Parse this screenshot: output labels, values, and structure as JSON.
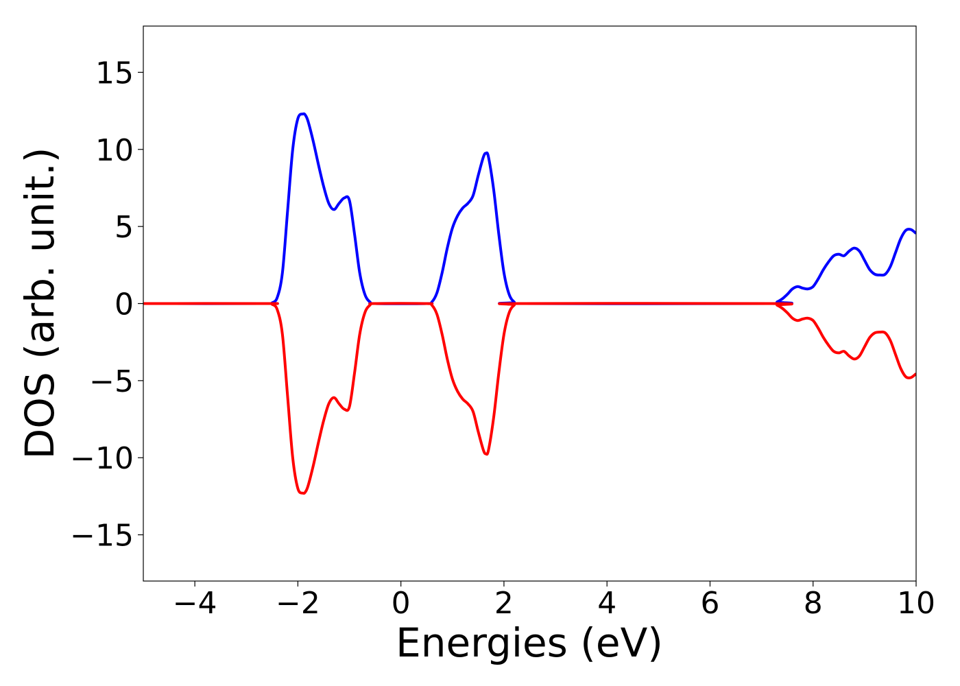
{
  "chart_data": {
    "type": "line",
    "title": "",
    "xlabel": "Energies (eV)",
    "ylabel": "DOS (arb. unit.)",
    "xlim": [
      -5,
      10
    ],
    "ylim": [
      -18,
      18
    ],
    "xticks": [
      -4,
      -2,
      0,
      2,
      4,
      6,
      8,
      10
    ],
    "xtick_labels": [
      "−4",
      "−2",
      "0",
      "2",
      "4",
      "6",
      "8",
      "10"
    ],
    "yticks": [
      15,
      10,
      5,
      0,
      -5,
      -10,
      -15
    ],
    "ytick_labels": [
      "15",
      "10",
      "5",
      "0",
      "−5",
      "−10",
      "−15"
    ],
    "grid": false,
    "legend": "none",
    "series": [
      {
        "color": "#0000ff",
        "x": [
          -5,
          -2.6,
          -2.5,
          -2.4,
          -2.3,
          -2.2,
          -2.1,
          -2.0,
          -1.9,
          -1.85,
          -1.8,
          -1.7,
          -1.6,
          -1.5,
          -1.4,
          -1.3,
          -1.2,
          -1.1,
          -1.0,
          -0.9,
          -0.8,
          -0.7,
          -0.6,
          -0.5,
          0.5,
          0.6,
          0.7,
          0.8,
          0.9,
          1.0,
          1.1,
          1.2,
          1.3,
          1.4,
          1.5,
          1.6,
          1.65,
          1.7,
          1.8,
          1.9,
          2.0,
          2.1,
          2.2,
          2.3,
          7.2,
          7.3,
          7.4,
          7.5,
          7.6,
          7.7,
          7.8,
          7.9,
          8.0,
          8.1,
          8.2,
          8.3,
          8.4,
          8.5,
          8.6,
          8.7,
          8.8,
          8.9,
          9.0,
          9.1,
          9.2,
          9.3,
          9.4,
          9.5,
          9.6,
          9.7,
          9.8,
          9.9,
          10.0
        ],
        "values": [
          0,
          0,
          0.05,
          0.4,
          2.0,
          6.0,
          10.0,
          12.0,
          12.3,
          12.2,
          11.8,
          10.5,
          9.0,
          7.6,
          6.5,
          6.1,
          6.5,
          6.85,
          6.7,
          4.5,
          2.0,
          0.6,
          0.1,
          0,
          0,
          0.1,
          0.7,
          2.0,
          3.6,
          4.9,
          5.7,
          6.2,
          6.5,
          7.0,
          8.3,
          9.5,
          9.75,
          9.5,
          7.4,
          4.5,
          2.0,
          0.6,
          0.1,
          0,
          0,
          0.1,
          0.3,
          0.6,
          0.95,
          1.1,
          1.0,
          0.95,
          1.1,
          1.6,
          2.2,
          2.7,
          3.1,
          3.2,
          3.1,
          3.4,
          3.6,
          3.4,
          2.8,
          2.2,
          1.9,
          1.85,
          1.9,
          2.4,
          3.3,
          4.2,
          4.75,
          4.8,
          4.55
        ]
      },
      {
        "color": "#ff0000",
        "x": [
          -5,
          -2.6,
          -2.5,
          -2.4,
          -2.3,
          -2.2,
          -2.1,
          -2.0,
          -1.9,
          -1.85,
          -1.8,
          -1.7,
          -1.6,
          -1.5,
          -1.4,
          -1.3,
          -1.2,
          -1.1,
          -1.0,
          -0.9,
          -0.8,
          -0.7,
          -0.6,
          -0.5,
          0.5,
          0.6,
          0.7,
          0.8,
          0.9,
          1.0,
          1.1,
          1.2,
          1.3,
          1.4,
          1.5,
          1.6,
          1.65,
          1.7,
          1.8,
          1.9,
          2.0,
          2.1,
          2.2,
          2.3,
          7.2,
          7.3,
          7.4,
          7.5,
          7.6,
          7.7,
          7.8,
          7.9,
          8.0,
          8.1,
          8.2,
          8.3,
          8.4,
          8.5,
          8.6,
          8.7,
          8.8,
          8.9,
          9.0,
          9.1,
          9.2,
          9.3,
          9.4,
          9.5,
          9.6,
          9.7,
          9.8,
          9.9,
          10.0
        ],
        "values": [
          0,
          0,
          -0.05,
          -0.4,
          -2.0,
          -6.0,
          -10.0,
          -12.0,
          -12.3,
          -12.2,
          -11.8,
          -10.5,
          -9.0,
          -7.6,
          -6.5,
          -6.1,
          -6.5,
          -6.85,
          -6.7,
          -4.5,
          -2.0,
          -0.6,
          -0.1,
          0,
          0,
          -0.1,
          -0.7,
          -2.0,
          -3.6,
          -4.9,
          -5.7,
          -6.2,
          -6.5,
          -7.0,
          -8.3,
          -9.5,
          -9.75,
          -9.5,
          -7.4,
          -4.5,
          -2.0,
          -0.6,
          -0.1,
          0,
          0,
          -0.1,
          -0.3,
          -0.6,
          -0.95,
          -1.1,
          -1.0,
          -0.95,
          -1.1,
          -1.6,
          -2.2,
          -2.7,
          -3.1,
          -3.2,
          -3.1,
          -3.4,
          -3.6,
          -3.4,
          -2.8,
          -2.2,
          -1.9,
          -1.85,
          -1.9,
          -2.4,
          -3.3,
          -4.2,
          -4.75,
          -4.8,
          -4.55
        ]
      }
    ]
  }
}
